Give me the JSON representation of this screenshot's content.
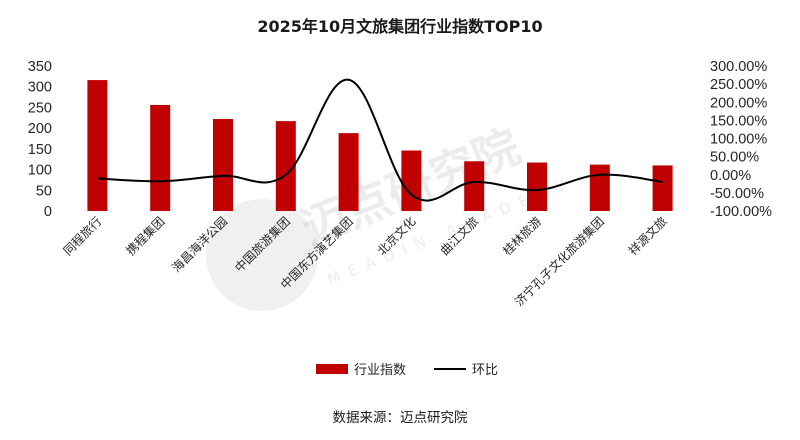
{
  "chart_data": {
    "type": "bar",
    "title": "2025年10月文旅集团行业指数TOP10",
    "categories": [
      "同程旅行",
      "携程集团",
      "海昌海洋公园",
      "中国旅游集团",
      "中国东方演艺集团",
      "北京文化",
      "曲江文旅",
      "桂林旅游",
      "济宁孔子文化旅游集团",
      "祥源文旅"
    ],
    "series": [
      {
        "name": "行业指数",
        "axis": "left",
        "type": "bar",
        "color": "#c00000",
        "values": [
          316,
          256,
          222,
          217,
          188,
          146,
          120,
          117,
          112,
          110
        ]
      },
      {
        "name": "环比",
        "axis": "right",
        "type": "line",
        "color": "#000000",
        "values": [
          -10,
          -18,
          -3,
          0,
          262,
          -55,
          -20,
          -42,
          0,
          -20
        ]
      }
    ],
    "y_left": {
      "min": 0,
      "max": 350,
      "step": 50,
      "ticks": [
        "0",
        "50",
        "100",
        "150",
        "200",
        "250",
        "300",
        "350"
      ]
    },
    "y_right": {
      "min": -100,
      "max": 300,
      "step": 50,
      "ticks": [
        "-100.00%",
        "-50.00%",
        "0.00%",
        "50.00%",
        "100.00%",
        "150.00%",
        "200.00%",
        "250.00%",
        "300.00%"
      ]
    },
    "grid": false,
    "legend_position": "bottom"
  },
  "legend": {
    "bar_label": "行业指数",
    "line_label": "环比"
  },
  "source": "数据来源：迈点研究院",
  "watermark": {
    "logo_text": "迈点研究院",
    "sub_text": "MEADIN ACADEMY"
  }
}
